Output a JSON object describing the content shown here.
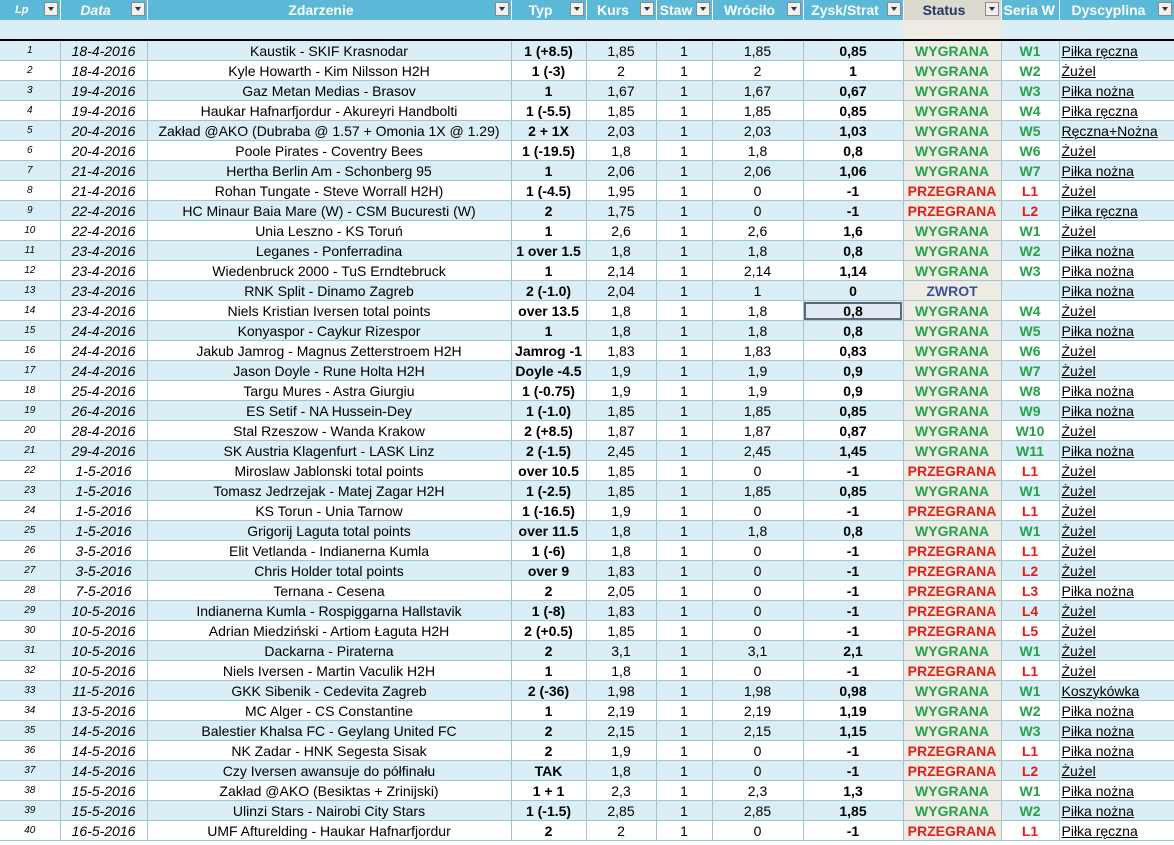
{
  "headers": {
    "lp": "Lp",
    "data": "Data",
    "zdarzenie": "Zdarzenie",
    "typ": "Typ",
    "kurs": "Kurs",
    "stawka": "Staw",
    "wrocilo": "Wróciło",
    "zysk": "Zysk/Strat",
    "status": "Status",
    "seria": "Seria W",
    "dyscyplina": "Dyscyplina"
  },
  "colors": {
    "header": "#5bb8d6",
    "win": "#22a24a",
    "loss": "#e0201b",
    "refund": "#3c4f9a",
    "band": "#dbeef5"
  },
  "rows": [
    [
      "1",
      "18-4-2016",
      "Kaustik - SKIF Krasnodar",
      "1 (+8.5)",
      "1,85",
      "1",
      "1,85",
      "0,85",
      "WYGRANA",
      "W1",
      "Piłka ręczna"
    ],
    [
      "2",
      "18-4-2016",
      "Kyle Howarth - Kim Nilsson H2H",
      "1 (-3)",
      "2",
      "1",
      "2",
      "1",
      "WYGRANA",
      "W2",
      "Żużel"
    ],
    [
      "3",
      "19-4-2016",
      "Gaz Metan Medias - Brasov",
      "1",
      "1,67",
      "1",
      "1,67",
      "0,67",
      "WYGRANA",
      "W3",
      "Piłka nożna"
    ],
    [
      "4",
      "19-4-2016",
      "Haukar Hafnarfjordur - Akureyri Handbolti",
      "1 (-5.5)",
      "1,85",
      "1",
      "1,85",
      "0,85",
      "WYGRANA",
      "W4",
      "Piłka ręczna"
    ],
    [
      "5",
      "20-4-2016",
      "Zakład @AKO (Dubraba @ 1.57 + Omonia 1X @ 1.29)",
      "2 + 1X",
      "2,03",
      "1",
      "2,03",
      "1,03",
      "WYGRANA",
      "W5",
      "Ręczna+Nożna"
    ],
    [
      "6",
      "20-4-2016",
      "Poole Pirates - Coventry Bees",
      "1 (-19.5)",
      "1,8",
      "1",
      "1,8",
      "0,8",
      "WYGRANA",
      "W6",
      "Żużel"
    ],
    [
      "7",
      "21-4-2016",
      "Hertha Berlin Am - Schonberg 95",
      "1",
      "2,06",
      "1",
      "2,06",
      "1,06",
      "WYGRANA",
      "W7",
      "Piłka nożna"
    ],
    [
      "8",
      "21-4-2016",
      "Rohan Tungate - Steve Worrall H2H)",
      "1 (-4.5)",
      "1,95",
      "1",
      "0",
      "-1",
      "PRZEGRANA",
      "L1",
      "Żużel"
    ],
    [
      "9",
      "22-4-2016",
      "HC Minaur Baia Mare (W) - CSM Bucuresti (W)",
      "2",
      "1,75",
      "1",
      "0",
      "-1",
      "PRZEGRANA",
      "L2",
      "Piłka ręczna"
    ],
    [
      "10",
      "22-4-2016",
      "Unia Leszno - KS Toruń",
      "1",
      "2,6",
      "1",
      "2,6",
      "1,6",
      "WYGRANA",
      "W1",
      "Żużel"
    ],
    [
      "11",
      "23-4-2016",
      "Leganes - Ponferradina",
      "1 over 1.5",
      "1,8",
      "1",
      "1,8",
      "0,8",
      "WYGRANA",
      "W2",
      "Piłka nożna"
    ],
    [
      "12",
      "23-4-2016",
      "Wiedenbruck 2000 - TuS Erndtebruck",
      "1",
      "2,14",
      "1",
      "2,14",
      "1,14",
      "WYGRANA",
      "W3",
      "Piłka nożna"
    ],
    [
      "13",
      "23-4-2016",
      "RNK Split - Dinamo Zagreb",
      "2 (-1.0)",
      "2,04",
      "1",
      "1",
      "0",
      "ZWROT",
      "",
      "Piłka nożna"
    ],
    [
      "14",
      "23-4-2016",
      "Niels Kristian Iversen total points",
      "over 13.5",
      "1,8",
      "1",
      "1,8",
      "0,8",
      "WYGRANA",
      "W4",
      "Żużel"
    ],
    [
      "15",
      "24-4-2016",
      "Konyaspor - Caykur Rizespor",
      "1",
      "1,8",
      "1",
      "1,8",
      "0,8",
      "WYGRANA",
      "W5",
      "Piłka nożna"
    ],
    [
      "16",
      "24-4-2016",
      "Jakub Jamrog - Magnus Zetterstroem H2H",
      "Jamrog -1",
      "1,83",
      "1",
      "1,83",
      "0,83",
      "WYGRANA",
      "W6",
      "Żużel"
    ],
    [
      "17",
      "24-4-2016",
      "Jason Doyle - Rune Holta H2H",
      "Doyle -4.5",
      "1,9",
      "1",
      "1,9",
      "0,9",
      "WYGRANA",
      "W7",
      "Żużel"
    ],
    [
      "18",
      "25-4-2016",
      "Targu Mures - Astra Giurgiu",
      "1 (-0.75)",
      "1,9",
      "1",
      "1,9",
      "0,9",
      "WYGRANA",
      "W8",
      "Piłka nożna"
    ],
    [
      "19",
      "26-4-2016",
      "ES Setif - NA Hussein-Dey",
      "1 (-1.0)",
      "1,85",
      "1",
      "1,85",
      "0,85",
      "WYGRANA",
      "W9",
      "Piłka nożna"
    ],
    [
      "20",
      "28-4-2016",
      "Stal Rzeszow - Wanda Krakow",
      "2 (+8.5)",
      "1,87",
      "1",
      "1,87",
      "0,87",
      "WYGRANA",
      "W10",
      "Żużel"
    ],
    [
      "21",
      "29-4-2016",
      "SK Austria Klagenfurt - LASK Linz",
      "2 (-1.5)",
      "2,45",
      "1",
      "2,45",
      "1,45",
      "WYGRANA",
      "W11",
      "Piłka nożna"
    ],
    [
      "22",
      "1-5-2016",
      "Miroslaw Jablonski total points",
      "over 10.5",
      "1,85",
      "1",
      "0",
      "-1",
      "PRZEGRANA",
      "L1",
      "Żużel"
    ],
    [
      "23",
      "1-5-2016",
      "Tomasz Jedrzejak - Matej Zagar H2H",
      "1 (-2.5)",
      "1,85",
      "1",
      "1,85",
      "0,85",
      "WYGRANA",
      "W1",
      "Żużel"
    ],
    [
      "24",
      "1-5-2016",
      "KS Torun - Unia Tarnow",
      "1 (-16.5)",
      "1,9",
      "1",
      "0",
      "-1",
      "PRZEGRANA",
      "L1",
      "Żużel"
    ],
    [
      "25",
      "1-5-2016",
      "Grigorij Laguta total points",
      "over 11.5",
      "1,8",
      "1",
      "1,8",
      "0,8",
      "WYGRANA",
      "W1",
      "Żużel"
    ],
    [
      "26",
      "3-5-2016",
      "Elit Vetlanda - Indianerna Kumla",
      "1 (-6)",
      "1,8",
      "1",
      "0",
      "-1",
      "PRZEGRANA",
      "L1",
      "Żużel"
    ],
    [
      "27",
      "3-5-2016",
      "Chris Holder total points",
      "over 9",
      "1,83",
      "1",
      "0",
      "-1",
      "PRZEGRANA",
      "L2",
      "Żużel"
    ],
    [
      "28",
      "7-5-2016",
      "Ternana - Cesena",
      "2",
      "2,05",
      "1",
      "0",
      "-1",
      "PRZEGRANA",
      "L3",
      "Piłka nożna"
    ],
    [
      "29",
      "10-5-2016",
      "Indianerna Kumla - Rospiggarna Hallstavik",
      "1 (-8)",
      "1,83",
      "1",
      "0",
      "-1",
      "PRZEGRANA",
      "L4",
      "Żużel"
    ],
    [
      "30",
      "10-5-2016",
      "Adrian Miedziński - Artiom Łaguta H2H",
      "2 (+0.5)",
      "1,85",
      "1",
      "0",
      "-1",
      "PRZEGRANA",
      "L5",
      "Żużel"
    ],
    [
      "31",
      "10-5-2016",
      "Dackarna - Piraterna",
      "2",
      "3,1",
      "1",
      "3,1",
      "2,1",
      "WYGRANA",
      "W1",
      "Żużel"
    ],
    [
      "32",
      "10-5-2016",
      "Niels Iversen - Martin Vaculik H2H",
      "1",
      "1,8",
      "1",
      "0",
      "-1",
      "PRZEGRANA",
      "L1",
      "Żużel"
    ],
    [
      "33",
      "11-5-2016",
      "GKK Sibenik - Cedevita Zagreb",
      "2 (-36)",
      "1,98",
      "1",
      "1,98",
      "0,98",
      "WYGRANA",
      "W1",
      "Koszykówka"
    ],
    [
      "34",
      "13-5-2016",
      "MC Alger - CS Constantine",
      "1",
      "2,19",
      "1",
      "2,19",
      "1,19",
      "WYGRANA",
      "W2",
      "Piłka nożna"
    ],
    [
      "35",
      "14-5-2016",
      "Balestier Khalsa FC - Geylang United FC",
      "2",
      "2,15",
      "1",
      "2,15",
      "1,15",
      "WYGRANA",
      "W3",
      "Piłka nożna"
    ],
    [
      "36",
      "14-5-2016",
      "NK Zadar - HNK Segesta Sisak",
      "2",
      "1,9",
      "1",
      "0",
      "-1",
      "PRZEGRANA",
      "L1",
      "Piłka nożna"
    ],
    [
      "37",
      "14-5-2016",
      "Czy Iversen awansuje do półfinału",
      "TAK",
      "1,8",
      "1",
      "0",
      "-1",
      "PRZEGRANA",
      "L2",
      "Żużel"
    ],
    [
      "38",
      "15-5-2016",
      "Zakład @AKO (Besiktas + Zrinijski)",
      "1 + 1",
      "2,3",
      "1",
      "2,3",
      "1,3",
      "WYGRANA",
      "W1",
      "Piłka nożna"
    ],
    [
      "39",
      "15-5-2016",
      "Ulinzi Stars - Nairobi City Stars",
      "1 (-1.5)",
      "2,85",
      "1",
      "2,85",
      "1,85",
      "WYGRANA",
      "W2",
      "Piłka nożna"
    ],
    [
      "40",
      "16-5-2016",
      "UMF Afturelding - Haukar Hafnarfjordur",
      "2",
      "2",
      "1",
      "0",
      "-1",
      "PRZEGRANA",
      "L1",
      "Piłka ręczna"
    ]
  ]
}
